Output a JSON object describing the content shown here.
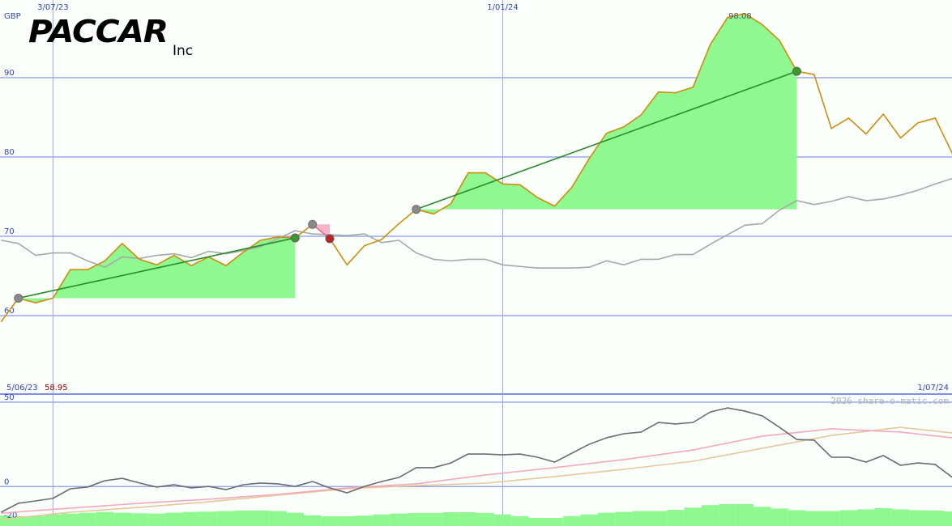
{
  "chart_data": [
    {
      "type": "line",
      "title": "PACCAR",
      "subtitle": "Inc",
      "currency": "GBP",
      "start_date": "5/06/23",
      "start_price": 58.95,
      "end_date": "1/07/24",
      "peak": 98.08,
      "xlim": [
        0,
        56
      ],
      "xticks": [
        {
          "value": 4,
          "label": "3/07/23"
        },
        {
          "value": 30,
          "label": "1/01/24"
        }
      ],
      "ylim": [
        50,
        100
      ],
      "yticks": [
        60,
        70,
        80,
        90
      ],
      "grid": true,
      "x": [
        1,
        2,
        3,
        4,
        5,
        6,
        7,
        8,
        9,
        10,
        11,
        12,
        13,
        14,
        15,
        16,
        17,
        18,
        19,
        20,
        21,
        22,
        23,
        24,
        25,
        26,
        27,
        28,
        29,
        30,
        31,
        32,
        33,
        34,
        35,
        36,
        37,
        38,
        39,
        40,
        41,
        42,
        43,
        44,
        45,
        46,
        47,
        48,
        49,
        50,
        51,
        52,
        53,
        54,
        55,
        56
      ],
      "series": [
        {
          "color": "#a8a8a8",
          "values": [
            69.5,
            69.1,
            67.6,
            67.9,
            67.9,
            66.9,
            66.1,
            67.4,
            67.2,
            67.6,
            67.8,
            67.3,
            68.1,
            67.8,
            68.2,
            68.7,
            69.7,
            70.7,
            70.3,
            70.2,
            70.1,
            70.3,
            69.2,
            69.5,
            67.9,
            67.1,
            66.9,
            67.1,
            67.1,
            66.4,
            66.2,
            66.0,
            66.0,
            66.0,
            66.1,
            66.9,
            66.4,
            67.1,
            67.1,
            67.7,
            67.7,
            69.0,
            70.2,
            71.4,
            71.6,
            73.3,
            74.5,
            74.0,
            74.4,
            75.0,
            74.5,
            74.7,
            75.2,
            75.8,
            76.6,
            77.3
          ]
        },
        {
          "color": "#d08c0c",
          "values": [
            59.2,
            62.2,
            61.6,
            62.2,
            65.8,
            65.8,
            66.9,
            69.1,
            67.1,
            66.4,
            67.6,
            66.3,
            67.4,
            66.3,
            68.0,
            69.5,
            69.9,
            69.8,
            71.5,
            69.7,
            66.4,
            68.8,
            69.6,
            71.6,
            73.4,
            72.8,
            74.1,
            78.0,
            78.0,
            76.6,
            76.5,
            74.9,
            73.8,
            76.2,
            79.8,
            83.0,
            83.8,
            85.3,
            88.2,
            88.1,
            88.8,
            94.2,
            97.6,
            98.08,
            96.7,
            94.7,
            90.8,
            90.4,
            83.6,
            84.9,
            82.9,
            85.4,
            82.4,
            84.3,
            84.9,
            80.4
          ]
        }
      ],
      "trades": [
        {
          "x": [
            2,
            18
          ],
          "y": [
            62.2,
            69.8
          ]
        },
        {
          "x": [
            19,
            20
          ],
          "y": [
            71.5,
            69.7
          ]
        },
        {
          "x": [
            25,
            47
          ],
          "y": [
            73.4,
            90.8
          ]
        }
      ],
      "gain_color": "#90f890",
      "loss_color": "#f8b4cc",
      "gain_line_color": "#2a8a2a",
      "loss_line_color": "#e07090"
    },
    {
      "type": "line",
      "watermark": "2026 share-o-matic.com",
      "xlim": [
        0,
        56
      ],
      "ylim": [
        -20,
        50
      ],
      "yticks": [
        -20,
        0,
        50
      ],
      "grid": true,
      "x": [
        1,
        2,
        3,
        4,
        5,
        6,
        7,
        8,
        9,
        10,
        11,
        12,
        13,
        14,
        15,
        16,
        17,
        18,
        19,
        20,
        21,
        22,
        23,
        24,
        25,
        26,
        27,
        28,
        29,
        30,
        31,
        32,
        33,
        34,
        35,
        36,
        37,
        38,
        39,
        40,
        41,
        42,
        43,
        44,
        45,
        46,
        47,
        48,
        49,
        50,
        51,
        52,
        53,
        54,
        55,
        56
      ],
      "bars": {
        "color": "#90f890",
        "values": [
          -17.1,
          -17.5,
          -17.5,
          -16.5,
          -16.0,
          -15.5,
          -15.0,
          -15.5,
          -15.8,
          -16.0,
          -15.5,
          -15.0,
          -14.8,
          -14.5,
          -14.2,
          -14.2,
          -14.5,
          -15.5,
          -17.0,
          -17.6,
          -17.6,
          -17.2,
          -16.5,
          -16.0,
          -15.7,
          -15.7,
          -15.2,
          -15.2,
          -15.7,
          -16.5,
          -17.5,
          -18.6,
          -18.6,
          -17.5,
          -16.5,
          -15.5,
          -15.0,
          -14.5,
          -14.5,
          -13.8,
          -12.5,
          -11.0,
          -10.4,
          -10.4,
          -12.0,
          -13.0,
          -14.0,
          -14.5,
          -14.5,
          -14.0,
          -13.5,
          -12.8,
          -13.5,
          -14.0,
          -14.2,
          -14.7
        ]
      },
      "series": [
        {
          "color": "#e4c898",
          "x": [
            1,
            5,
            9,
            13,
            17,
            21,
            25,
            29,
            33,
            37,
            41,
            45,
            49,
            53,
            56
          ],
          "values": [
            -19.5,
            -15.2,
            -12.3,
            -9.0,
            -5.1,
            -1.3,
            0.6,
            2.0,
            5.9,
            10.2,
            15.0,
            22.7,
            30.3,
            35.1,
            31.8
          ]
        },
        {
          "color": "#f4a8c0",
          "x": [
            1,
            5,
            9,
            13,
            17,
            21,
            25,
            29,
            33,
            37,
            41,
            45,
            49,
            53,
            56
          ],
          "values": [
            -15.7,
            -12.8,
            -9.9,
            -7.5,
            -4.6,
            -0.8,
            1.6,
            6.9,
            11.2,
            16.0,
            21.7,
            29.9,
            34.2,
            32.3,
            28.9
          ]
        },
        {
          "color": "#6c6c6c",
          "values": [
            -15.2,
            -9.9,
            -8.5,
            -7.0,
            -1.3,
            -0.3,
            3.5,
            4.9,
            2.1,
            -0.3,
            1.1,
            -0.8,
            0.1,
            -1.8,
            1.1,
            2.1,
            1.6,
            0.1,
            3.0,
            -0.8,
            -3.7,
            0.1,
            3.0,
            5.4,
            11.2,
            11.2,
            14.0,
            19.3,
            19.3,
            18.8,
            19.3,
            17.4,
            14.5,
            19.8,
            25.1,
            28.9,
            31.3,
            32.3,
            38.0,
            37.1,
            38.0,
            44.2,
            46.6,
            44.7,
            41.9,
            35.1,
            27.9,
            27.5,
            17.4,
            17.4,
            14.5,
            18.4,
            12.6,
            14.0,
            13.1,
            5.4
          ]
        }
      ]
    }
  ]
}
